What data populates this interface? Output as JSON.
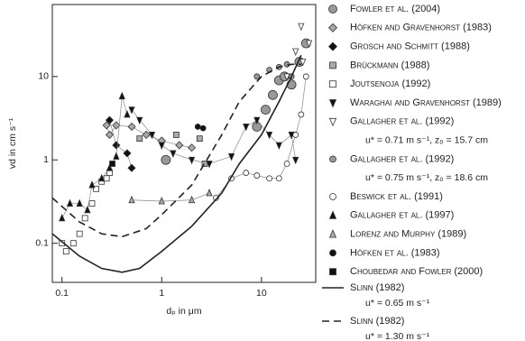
{
  "chart_data": {
    "type": "scatter",
    "x_label": "dₚ in μm",
    "y_label": "vd in cm s⁻¹",
    "xscale": "log",
    "yscale": "log",
    "xlim": [
      0.08,
      35
    ],
    "ylim": [
      0.034,
      73
    ],
    "xticks": [
      0.1,
      1,
      10
    ],
    "yticks": [
      0.1,
      1,
      10
    ],
    "legend": "right",
    "series": [
      {
        "name": "Fowler et al. (2004)",
        "marker": "circle",
        "size": 5,
        "color": "#999",
        "x": [
          1.1,
          9,
          11,
          13,
          15,
          17,
          20,
          24,
          28
        ],
        "values": [
          1.0,
          2.5,
          4,
          6,
          9,
          10,
          8,
          15,
          25
        ]
      },
      {
        "name": "Höfken and Gravenhorst (1983)",
        "marker": "diamond",
        "color": "#aaa",
        "connected": true,
        "x": [
          0.28,
          0.3,
          0.35,
          0.5,
          0.7,
          1,
          1.5,
          2
        ],
        "values": [
          2.6,
          2,
          2.6,
          2.5,
          2,
          1.7,
          1.5,
          1.4
        ]
      },
      {
        "name": "Grosch and Schmitt (1988)",
        "marker": "diamond",
        "color": "#111",
        "connected": true,
        "x": [
          0.3,
          0.35,
          0.45,
          0.5
        ],
        "values": [
          3,
          1.5,
          1.2,
          0.8
        ]
      },
      {
        "name": "Brückmann (1988)",
        "marker": "square",
        "color": "#aaa",
        "x": [
          0.6,
          1.4,
          2.4,
          2.7
        ],
        "values": [
          1.8,
          2,
          1.8,
          0.9
        ]
      },
      {
        "name": "Joutsenoja (1992)",
        "marker": "square",
        "color": "#fff",
        "x": [
          0.1,
          0.11,
          0.13,
          0.15,
          0.17,
          0.2,
          0.22,
          0.25,
          0.28,
          0.3
        ],
        "values": [
          0.1,
          0.08,
          0.1,
          0.13,
          0.2,
          0.3,
          0.45,
          0.55,
          0.6,
          0.7
        ]
      },
      {
        "name": "Waraghai and Gravenhorst (1989)",
        "marker": "triangle-down",
        "color": "#111",
        "connected": true,
        "x": [
          0.5,
          0.6,
          0.8,
          1,
          1.3,
          2,
          3,
          5,
          7,
          9,
          12,
          15,
          20,
          22
        ],
        "values": [
          4,
          3,
          2,
          1.5,
          1.2,
          1,
          0.9,
          1.1,
          2.5,
          3,
          2,
          1.5,
          2,
          1
        ]
      },
      {
        "name": "Gallagher et al. (1992)",
        "note": "u* = 0.71 m s⁻¹, z₀ = 15.7 cm",
        "marker": "triangle-down",
        "color": "#fff",
        "x": [
          18,
          22,
          25,
          26,
          30
        ],
        "values": [
          10,
          20,
          40,
          15,
          25
        ]
      },
      {
        "name": "Gallagher et al. (1992)",
        "note": "u* = 0.75 m s⁻¹, z₀ = 18.6 cm",
        "marker": "circle",
        "color": "#999",
        "x": [
          9,
          12,
          15,
          18,
          20
        ],
        "values": [
          10,
          12,
          13,
          14,
          10
        ]
      },
      {
        "name": "Beswick et al. (1991)",
        "marker": "circle",
        "color": "#fff",
        "connected": true,
        "x": [
          3.5,
          5,
          7,
          9,
          12,
          15,
          18,
          22,
          25,
          28
        ],
        "values": [
          0.35,
          0.6,
          0.7,
          0.65,
          0.6,
          0.6,
          0.9,
          2,
          3.5,
          10
        ]
      },
      {
        "name": "Gallagher et al. (1997)",
        "marker": "triangle-up",
        "color": "#111",
        "connected": true,
        "x": [
          0.1,
          0.12,
          0.15,
          0.18,
          0.2,
          0.25,
          0.3,
          0.35,
          0.4,
          0.45
        ],
        "values": [
          0.2,
          0.3,
          0.3,
          0.25,
          0.5,
          0.6,
          0.8,
          1.1,
          5.8,
          3.5
        ]
      },
      {
        "name": "Lorenz and Murphy (1989)",
        "marker": "triangle-up",
        "color": "#aaa",
        "connected": true,
        "x": [
          0.5,
          1,
          2,
          3
        ],
        "values": [
          0.33,
          0.32,
          0.33,
          0.4
        ]
      },
      {
        "name": "Höfken et al. (1983)",
        "marker": "circle",
        "color": "#111",
        "x": [
          2.3,
          2.6
        ],
        "values": [
          2.5,
          2.4
        ]
      },
      {
        "name": "Choubedar and Fowler (2000)",
        "marker": "square",
        "color": "#111",
        "x": [
          0.32
        ],
        "values": [
          0.9
        ]
      },
      {
        "name": "Slinn (1982)",
        "note": "u* = 0.65 m s⁻¹",
        "line": "solid",
        "color": "#222",
        "x": [
          0.08,
          0.15,
          0.25,
          0.4,
          0.6,
          1,
          2,
          4,
          6,
          10,
          15,
          20,
          25
        ],
        "values": [
          0.13,
          0.07,
          0.05,
          0.045,
          0.05,
          0.08,
          0.16,
          0.4,
          0.9,
          2,
          5,
          10,
          18
        ]
      },
      {
        "name": "Slinn (1982)",
        "note": "u* = 1.30 m s⁻¹",
        "line": "dashed",
        "color": "#222",
        "x": [
          0.08,
          0.15,
          0.25,
          0.4,
          0.7,
          1,
          2,
          4,
          6,
          10,
          15,
          20,
          25
        ],
        "values": [
          0.35,
          0.18,
          0.13,
          0.12,
          0.15,
          0.22,
          0.5,
          2,
          5,
          10,
          13,
          14,
          14
        ]
      }
    ]
  }
}
